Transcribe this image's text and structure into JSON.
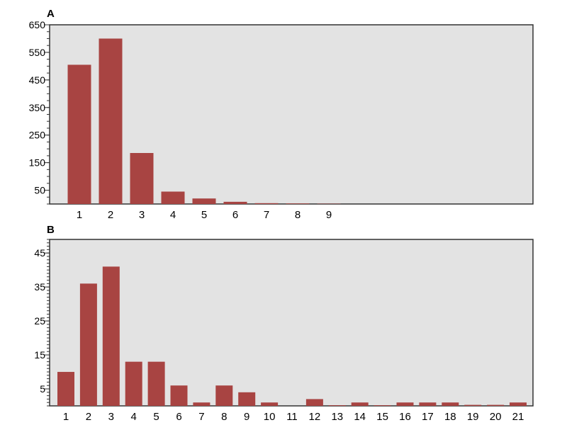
{
  "chart_data": [
    {
      "type": "bar",
      "panel_label": "A",
      "ylim": [
        0,
        650
      ],
      "yticks": [
        50,
        150,
        250,
        350,
        450,
        550,
        650
      ],
      "categories": [
        "1",
        "2",
        "3",
        "4",
        "5",
        "6",
        "7",
        "8",
        "9"
      ],
      "values": [
        505,
        600,
        185,
        45,
        20,
        8,
        3,
        2,
        1
      ],
      "bar_color": "#a84442",
      "background_color": "#e3e3e3"
    },
    {
      "type": "bar",
      "panel_label": "B",
      "ylim": [
        0,
        49
      ],
      "yticks": [
        5,
        15,
        25,
        35,
        45
      ],
      "categories": [
        "1",
        "2",
        "3",
        "4",
        "5",
        "6",
        "7",
        "8",
        "9",
        "10",
        "11",
        "12",
        "13",
        "14",
        "15",
        "16",
        "17",
        "18",
        "19",
        "20",
        "21"
      ],
      "values": [
        10,
        36,
        41,
        13,
        13,
        6,
        1,
        6,
        4,
        1,
        0,
        2,
        0.2,
        1,
        0.2,
        1,
        1,
        1,
        0.3,
        0.3,
        1
      ],
      "bar_color": "#a84442",
      "background_color": "#e3e3e3"
    }
  ]
}
